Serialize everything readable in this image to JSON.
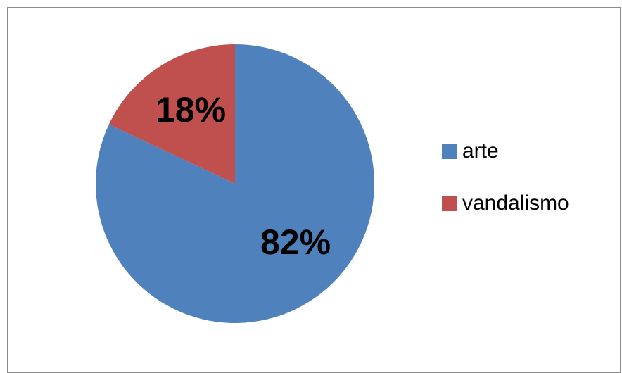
{
  "chart_data": {
    "type": "pie",
    "title": "",
    "slices": [
      {
        "label": "arte",
        "value": 82,
        "display": "82%",
        "color": "#4f81bd"
      },
      {
        "label": "vandalismo",
        "value": 18,
        "display": "18%",
        "color": "#c0504d"
      }
    ],
    "start_angle": "12 o'clock",
    "direction": "clockwise",
    "legend_position": "right"
  }
}
